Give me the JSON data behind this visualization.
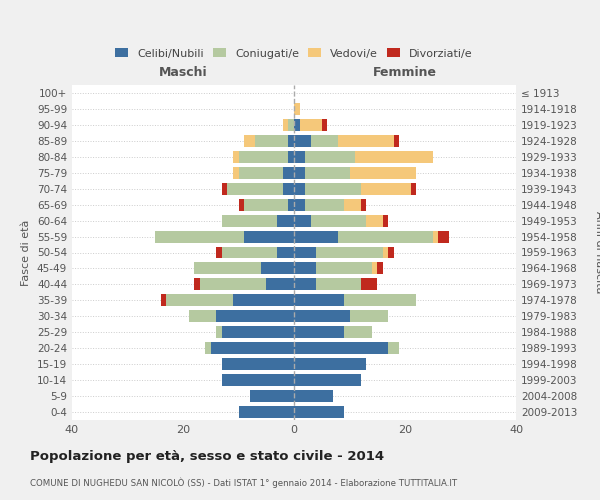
{
  "age_groups": [
    "0-4",
    "5-9",
    "10-14",
    "15-19",
    "20-24",
    "25-29",
    "30-34",
    "35-39",
    "40-44",
    "45-49",
    "50-54",
    "55-59",
    "60-64",
    "65-69",
    "70-74",
    "75-79",
    "80-84",
    "85-89",
    "90-94",
    "95-99",
    "100+"
  ],
  "birth_years": [
    "2009-2013",
    "2004-2008",
    "1999-2003",
    "1994-1998",
    "1989-1993",
    "1984-1988",
    "1979-1983",
    "1974-1978",
    "1969-1973",
    "1964-1968",
    "1959-1963",
    "1954-1958",
    "1949-1953",
    "1944-1948",
    "1939-1943",
    "1934-1938",
    "1929-1933",
    "1924-1928",
    "1919-1923",
    "1914-1918",
    "≤ 1913"
  ],
  "maschi": {
    "celibi": [
      10,
      8,
      13,
      13,
      15,
      13,
      14,
      11,
      5,
      6,
      3,
      9,
      3,
      1,
      2,
      2,
      1,
      1,
      0,
      0,
      0
    ],
    "coniugati": [
      0,
      0,
      0,
      0,
      1,
      1,
      5,
      12,
      12,
      12,
      10,
      16,
      10,
      8,
      10,
      8,
      9,
      6,
      1,
      0,
      0
    ],
    "vedovi": [
      0,
      0,
      0,
      0,
      0,
      0,
      0,
      0,
      0,
      0,
      0,
      0,
      0,
      0,
      0,
      1,
      1,
      2,
      1,
      0,
      0
    ],
    "divorziati": [
      0,
      0,
      0,
      0,
      0,
      0,
      0,
      1,
      1,
      0,
      1,
      0,
      0,
      1,
      1,
      0,
      0,
      0,
      0,
      0,
      0
    ]
  },
  "femmine": {
    "nubili": [
      9,
      7,
      12,
      13,
      17,
      9,
      10,
      9,
      4,
      4,
      4,
      8,
      3,
      2,
      2,
      2,
      2,
      3,
      1,
      0,
      0
    ],
    "coniugate": [
      0,
      0,
      0,
      0,
      2,
      5,
      7,
      13,
      8,
      10,
      12,
      17,
      10,
      7,
      10,
      8,
      9,
      5,
      0,
      0,
      0
    ],
    "vedove": [
      0,
      0,
      0,
      0,
      0,
      0,
      0,
      0,
      0,
      1,
      1,
      1,
      3,
      3,
      9,
      12,
      14,
      10,
      4,
      1,
      0
    ],
    "divorziate": [
      0,
      0,
      0,
      0,
      0,
      0,
      0,
      0,
      3,
      1,
      1,
      2,
      1,
      1,
      1,
      0,
      0,
      1,
      1,
      0,
      0
    ]
  },
  "colors": {
    "celibi": "#3d6fa0",
    "coniugati": "#b5c9a0",
    "vedovi": "#f5c87a",
    "divorziati": "#c0291e"
  },
  "xlim": 40,
  "title": "Popolazione per età, sesso e stato civile - 2014",
  "subtitle": "COMUNE DI NUGHEDU SAN NICOLÒ (SS) - Dati ISTAT 1° gennaio 2014 - Elaborazione TUTTITALIA.IT",
  "ylabel": "Fasce di età",
  "ylabel_right": "Anni di nascita",
  "bg_color": "#f0f0f0",
  "plot_bg": "#ffffff"
}
